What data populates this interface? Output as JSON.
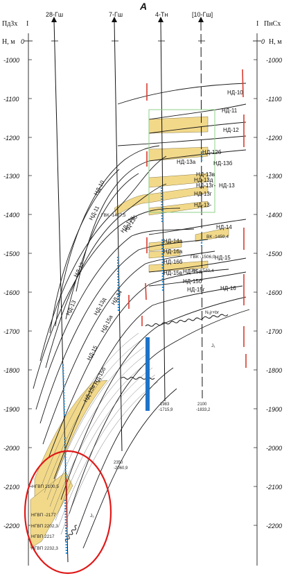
{
  "title": "A",
  "left_header": {
    "side": "ПдЗх",
    "roman": "I",
    "axis": "Н, м",
    "zero": "0"
  },
  "right_header": {
    "roman": "I",
    "side": "ПнСх",
    "axis": "Н, м",
    "zero": "0"
  },
  "depth_ticks": [
    "-1000",
    "-1100",
    "-1200",
    "-1300",
    "-1400",
    "-1500",
    "-1600",
    "-1700",
    "-1800",
    "-1900",
    "-2000",
    "-2100",
    "-2200"
  ],
  "wells": [
    {
      "name": "28-Гш",
      "td": "",
      "td_abs": ""
    },
    {
      "name": "7-Гш",
      "td": "2350",
      "td_abs": "-2060,9"
    },
    {
      "name": "4-Тн",
      "td": "1983",
      "td_abs": "-1715,9"
    },
    {
      "name": "[10-Гш]",
      "td": "2100",
      "td_abs": "-1833,2"
    }
  ],
  "horizons": [
    "НД-10",
    "НД-11",
    "НД-12",
    "НД-12б",
    "НД-13",
    "НД-13а",
    "НД-13б",
    "НД-13в",
    "НД-13г",
    "НД-13д",
    "НД-14",
    "НД-15",
    "НД-15а",
    "НД-15б",
    "НД-15в",
    "НД-16",
    "НД-13-",
    "НД-13г-",
    "НД-14а",
    "НД-16а",
    "НД-16б",
    "НД-15г"
  ],
  "contacts": [
    {
      "text": "ГВК -1407,5"
    },
    {
      "text": "ВК -1459,4"
    },
    {
      "text": "ГВК -1506,0"
    },
    {
      "text": "ГВК -1540,4"
    }
  ],
  "ngvp": [
    "НГВП 2100,5",
    "НГВП -2177",
    "НГВП 2202,3",
    "НГВП 2217",
    "НГВП 2232,3"
  ],
  "strat_units": [
    "J₁",
    "J₁",
    "N₁jr+br"
  ],
  "colors": {
    "sand": "#f2d98a",
    "water": "#2a8fd6",
    "fault": "#d93b2e",
    "marker": "#1e74c8",
    "circle": "#e01818",
    "green_box": "#8fd08a"
  }
}
